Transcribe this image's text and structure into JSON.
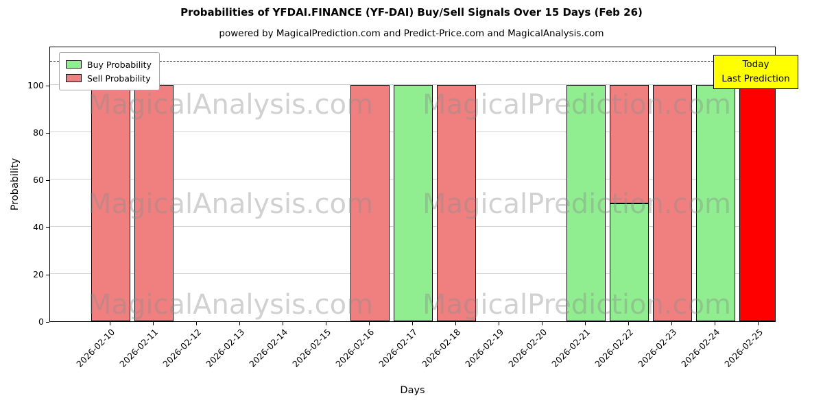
{
  "title": "Probabilities of YFDAI.FINANCE (YF-DAI) Buy/Sell Signals Over 15 Days (Feb 26)",
  "subtitle": "powered by MagicalPrediction.com and Predict-Price.com and MagicalAnalysis.com",
  "chart_data": {
    "type": "bar",
    "stacked": true,
    "xlabel": "Days",
    "ylabel": "Probability",
    "ylim": [
      0,
      116.6
    ],
    "yticks": [
      0,
      20,
      40,
      60,
      80,
      100
    ],
    "grid": "horizontal",
    "dashed_line_y": 110,
    "categories": [
      "2026-02-10",
      "2026-02-11",
      "2026-02-12",
      "2026-02-13",
      "2026-02-14",
      "2026-02-15",
      "2026-02-16",
      "2026-02-17",
      "2026-02-18",
      "2026-02-19",
      "2026-02-20",
      "2026-02-21",
      "2026-02-22",
      "2026-02-23",
      "2026-02-24",
      "2026-02-25"
    ],
    "series": [
      {
        "name": "Buy Probability",
        "color": "#90ee90",
        "values": [
          0,
          0,
          0,
          0,
          0,
          0,
          0,
          100,
          0,
          0,
          0,
          100,
          50,
          0,
          100,
          0
        ]
      },
      {
        "name": "Sell Probability",
        "color": "#f08080",
        "values": [
          100,
          100,
          0,
          0,
          0,
          0,
          100,
          0,
          100,
          0,
          0,
          0,
          50,
          100,
          0,
          0
        ]
      }
    ],
    "today_bar": {
      "category": "2026-02-25",
      "index": 15,
      "value": 100,
      "color": "#ff0000"
    },
    "legend": {
      "position": "upper-left",
      "items": [
        {
          "label": "Buy Probability",
          "color": "#90ee90"
        },
        {
          "label": "Sell Probability",
          "color": "#f08080"
        }
      ]
    },
    "annotation": {
      "lines": [
        "Today",
        "Last Prediction"
      ],
      "bg_color": "#ffff00"
    },
    "watermarks": [
      "MagicalAnalysis.com",
      "MagicalPrediction.com"
    ]
  }
}
